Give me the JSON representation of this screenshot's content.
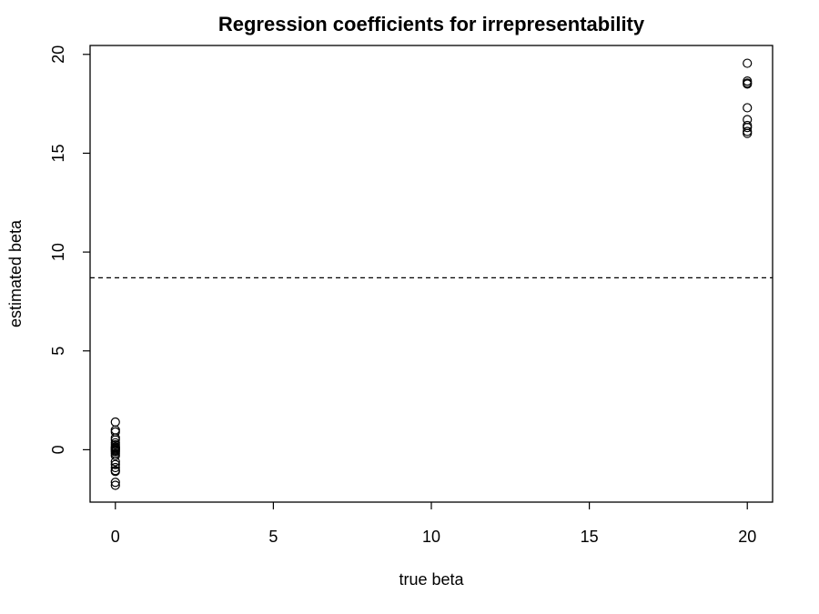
{
  "chart_data": {
    "type": "scatter",
    "title": "Regression coefficients for irrepresentability",
    "xlabel": "true beta",
    "ylabel": "estimated beta",
    "xlim": [
      -0.8,
      20.8
    ],
    "ylim": [
      -2.65,
      20.45
    ],
    "x_ticks": [
      0,
      5,
      10,
      15,
      20
    ],
    "y_ticks": [
      0,
      5,
      10,
      15,
      20
    ],
    "grid": false,
    "legend": "none",
    "colors": {
      "points": "#000000",
      "reference_line": "#000000",
      "frame": "#000000"
    },
    "reference_line": {
      "orientation": "horizontal",
      "y": 8.7,
      "style": "dashed"
    },
    "series": [
      {
        "x": [
          0,
          0,
          0,
          0,
          0,
          0,
          0,
          0,
          0,
          0,
          0,
          0,
          0,
          0,
          0,
          0,
          0,
          0,
          0,
          0,
          0,
          0,
          20,
          20,
          20,
          20,
          20,
          20,
          20,
          20,
          20,
          20
        ],
        "y": [
          1.4,
          1.0,
          0.9,
          0.6,
          0.5,
          0.35,
          0.25,
          0.15,
          0.1,
          0.05,
          0.0,
          -0.05,
          -0.1,
          -0.2,
          -0.3,
          -0.6,
          -0.75,
          -0.9,
          -1.05,
          -1.1,
          -1.65,
          -1.8,
          19.55,
          18.65,
          18.55,
          18.5,
          17.3,
          16.7,
          16.4,
          16.3,
          16.1,
          16.0
        ]
      }
    ]
  }
}
